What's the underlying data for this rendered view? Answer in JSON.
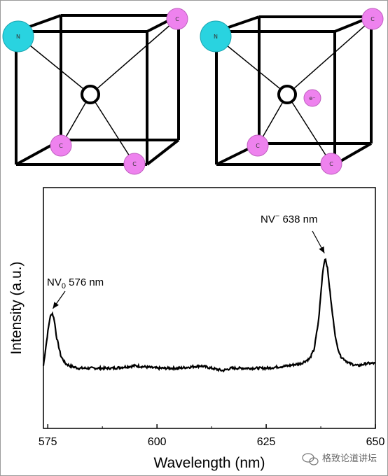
{
  "diagrams": [
    {
      "atoms": [
        {
          "label": "N",
          "kind": "nitrogen"
        },
        {
          "label": "C",
          "kind": "carbon"
        },
        {
          "label": "C",
          "kind": "carbon"
        },
        {
          "label": "C",
          "kind": "carbon"
        }
      ],
      "vacancy": "vacancy",
      "electron_label": ""
    },
    {
      "atoms": [
        {
          "label": "N",
          "kind": "nitrogen"
        },
        {
          "label": "C",
          "kind": "carbon"
        },
        {
          "label": "C",
          "kind": "carbon"
        },
        {
          "label": "C",
          "kind": "carbon"
        }
      ],
      "vacancy": "vacancy",
      "electron_label": "e⁻"
    }
  ],
  "colors": {
    "nitrogen": "#29d3e0",
    "carbon": "#ee82ee",
    "line": "#000000"
  },
  "chart_data": {
    "type": "line",
    "title": "",
    "xlabel": "Wavelength (nm)",
    "ylabel": "Intensity (a.u.)",
    "xlim": [
      574,
      650
    ],
    "ylim": [
      0,
      1
    ],
    "xticks": [
      575,
      600,
      625,
      650
    ],
    "grid": false,
    "series": [
      {
        "x": [
          574,
          575,
          575.5,
          576,
          576.5,
          577,
          578,
          579,
          580,
          582,
          585,
          590,
          595,
          600,
          605,
          610,
          615,
          617,
          620,
          625,
          630,
          633,
          635,
          636,
          637,
          638,
          638.5,
          639,
          640,
          641,
          642,
          644,
          646,
          648,
          650
        ],
        "y": [
          0.26,
          0.4,
          0.46,
          0.48,
          0.45,
          0.38,
          0.3,
          0.27,
          0.26,
          0.25,
          0.25,
          0.25,
          0.26,
          0.25,
          0.25,
          0.26,
          0.24,
          0.25,
          0.25,
          0.25,
          0.26,
          0.27,
          0.29,
          0.33,
          0.45,
          0.66,
          0.71,
          0.67,
          0.5,
          0.36,
          0.3,
          0.27,
          0.26,
          0.27,
          0.27
        ]
      }
    ],
    "annotations": [
      {
        "text_main": "NV",
        "text_sub": "0",
        "text_rest": " 576 nm",
        "x": 576,
        "y": 0.48
      },
      {
        "text_main": "NV",
        "text_sup": "−",
        "text_rest": " 638 nm",
        "x": 638.5,
        "y": 0.71
      }
    ]
  },
  "watermark": "格致论道讲坛"
}
